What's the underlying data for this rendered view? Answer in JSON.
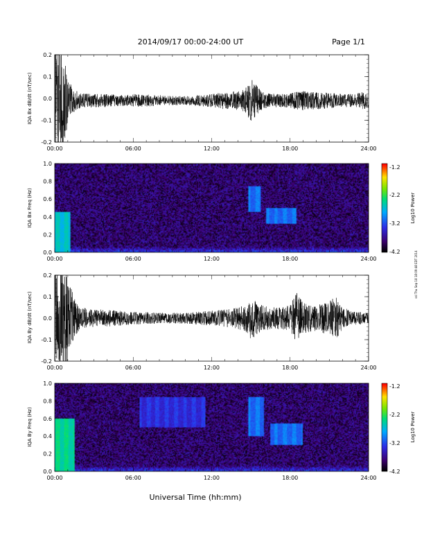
{
  "header": {
    "date_range": "2014/09/17  00:00-24:00 UT",
    "page": "Page 1/1"
  },
  "xlabel": "Universal Time (hh:mm)",
  "x_ticks": [
    "00:00",
    "06:00",
    "12:00",
    "18:00",
    "24:00"
  ],
  "side_stamp": "ssl Thu Sep 18 18:09:48 EDT 2014",
  "chart_data": [
    {
      "type": "line",
      "ylabel": "IQA Bx dB/dt (nT/sec)",
      "ylim": [
        -0.2,
        0.2
      ],
      "y_ticks": [
        "0.2",
        "0.1",
        "0.0",
        "-0.1",
        "-0.2"
      ],
      "xlim_hours": [
        0,
        24
      ],
      "baseline": -0.01,
      "series": [
        {
          "x_hours": [
            0.0,
            0.3,
            0.6,
            1.0,
            1.5,
            2.0,
            3.0,
            4.0,
            5.0,
            6.0,
            8.0,
            10.0,
            11.0,
            12.0,
            13.0,
            13.5,
            14.0,
            14.5,
            15.0,
            15.3,
            15.7,
            16.0,
            17.0,
            18.0,
            19.0,
            20.0,
            21.0,
            22.0,
            23.0,
            23.5,
            24.0
          ],
          "envelope": [
            0.3,
            0.3,
            0.25,
            0.1,
            0.05,
            0.035,
            0.03,
            0.03,
            0.025,
            0.03,
            0.025,
            0.02,
            0.025,
            0.03,
            0.04,
            0.04,
            0.045,
            0.05,
            0.1,
            0.08,
            0.05,
            0.035,
            0.03,
            0.035,
            0.045,
            0.04,
            0.035,
            0.03,
            0.03,
            0.04,
            0.035
          ]
        }
      ]
    },
    {
      "type": "heatmap",
      "ylabel": "IQA Bx Freq (Hz)",
      "ylim": [
        0.0,
        1.0
      ],
      "y_ticks": [
        "1.0",
        "0.8",
        "0.6",
        "0.4",
        "0.2",
        "0.0"
      ],
      "xlim_hours": [
        0,
        24
      ],
      "colorbar": {
        "label": "Log10 Power",
        "min": -4.2,
        "max": -1.2,
        "ticks": [
          "-1.2",
          "-2.2",
          "-3.2",
          "-4.2"
        ]
      },
      "features": [
        {
          "t_start": 0.0,
          "t_end": 1.2,
          "f_low": 0.0,
          "f_high": 0.45,
          "level": -2.6
        },
        {
          "t_start": 14.8,
          "t_end": 15.8,
          "f_low": 0.45,
          "f_high": 0.75,
          "level": -3.0
        },
        {
          "t_start": 16.2,
          "t_end": 18.5,
          "f_low": 0.32,
          "f_high": 0.5,
          "level": -3.0
        }
      ]
    },
    {
      "type": "line",
      "ylabel": "IQA By dB/dt (nT/sec)",
      "ylim": [
        -0.2,
        0.2
      ],
      "y_ticks": [
        "0.2",
        "0.1",
        "0.0",
        "-0.1",
        "-0.2"
      ],
      "xlim_hours": [
        0,
        24
      ],
      "baseline": 0.0,
      "series": [
        {
          "x_hours": [
            0.0,
            0.3,
            0.6,
            1.0,
            1.5,
            2.0,
            3.0,
            4.0,
            5.0,
            6.0,
            8.0,
            10.0,
            11.0,
            12.0,
            13.0,
            14.0,
            14.5,
            15.0,
            15.5,
            16.0,
            17.0,
            18.0,
            18.5,
            19.0,
            20.0,
            21.0,
            21.5,
            22.0,
            23.0,
            24.0
          ],
          "envelope": [
            0.3,
            0.3,
            0.3,
            0.2,
            0.09,
            0.05,
            0.04,
            0.04,
            0.035,
            0.03,
            0.025,
            0.025,
            0.03,
            0.035,
            0.04,
            0.05,
            0.06,
            0.1,
            0.08,
            0.06,
            0.05,
            0.06,
            0.12,
            0.07,
            0.06,
            0.08,
            0.1,
            0.05,
            0.03,
            0.025
          ]
        }
      ]
    },
    {
      "type": "heatmap",
      "ylabel": "IQA By Freq (Hz)",
      "ylim": [
        0.0,
        1.0
      ],
      "y_ticks": [
        "1.0",
        "0.8",
        "0.6",
        "0.4",
        "0.2",
        "0.0"
      ],
      "xlim_hours": [
        0,
        24
      ],
      "colorbar": {
        "label": "Log10 Power",
        "min": -4.2,
        "max": -1.2,
        "ticks": [
          "-1.2",
          "-2.2",
          "-3.2",
          "-4.2"
        ]
      },
      "features": [
        {
          "t_start": 0.0,
          "t_end": 1.5,
          "f_low": 0.0,
          "f_high": 0.6,
          "level": -2.4
        },
        {
          "t_start": 6.5,
          "t_end": 11.5,
          "f_low": 0.5,
          "f_high": 0.85,
          "level": -3.3
        },
        {
          "t_start": 14.8,
          "t_end": 16.0,
          "f_low": 0.4,
          "f_high": 0.85,
          "level": -3.0
        },
        {
          "t_start": 16.5,
          "t_end": 19.0,
          "f_low": 0.3,
          "f_high": 0.55,
          "level": -3.0
        }
      ]
    }
  ]
}
